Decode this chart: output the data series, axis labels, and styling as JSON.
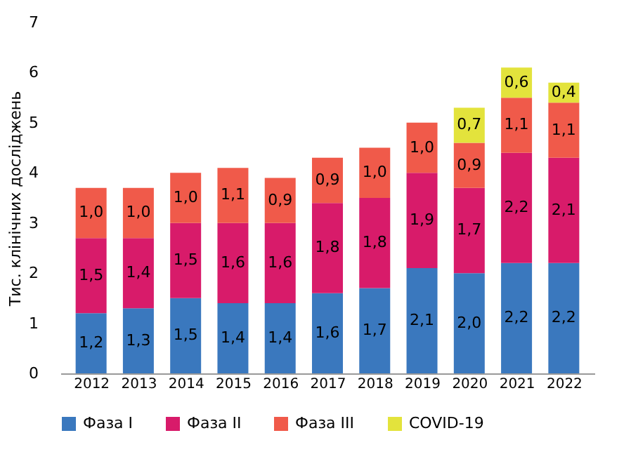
{
  "chart_data": {
    "type": "bar",
    "stacked": true,
    "ylabel": "Тис. клінічних досліджень",
    "categories": [
      "2012",
      "2013",
      "2014",
      "2015",
      "2016",
      "2017",
      "2018",
      "2019",
      "2020",
      "2021",
      "2022"
    ],
    "series": [
      {
        "name": "Фаза I",
        "color": "#3a78be",
        "values": [
          1.2,
          1.3,
          1.5,
          1.4,
          1.4,
          1.6,
          1.7,
          2.1,
          2.0,
          2.2,
          2.2
        ],
        "value_labels": [
          "1,2",
          "1,3",
          "1,5",
          "1,4",
          "1,4",
          "1,6",
          "1,7",
          "2,1",
          "2,0",
          "2,2",
          "2,2"
        ]
      },
      {
        "name": "Фаза II",
        "color": "#d81b6a",
        "values": [
          1.5,
          1.4,
          1.5,
          1.6,
          1.6,
          1.8,
          1.8,
          1.9,
          1.7,
          2.2,
          2.1
        ],
        "value_labels": [
          "1,5",
          "1,4",
          "1,5",
          "1,6",
          "1,6",
          "1,8",
          "1,8",
          "1,9",
          "1,7",
          "2,2",
          "2,1"
        ]
      },
      {
        "name": "Фаза III",
        "color": "#f05a4a",
        "values": [
          1.0,
          1.0,
          1.0,
          1.1,
          0.9,
          0.9,
          1.0,
          1.0,
          0.9,
          1.1,
          1.1
        ],
        "value_labels": [
          "1,0",
          "1,0",
          "1,0",
          "1,1",
          "0,9",
          "0,9",
          "1,0",
          "1,0",
          "0,9",
          "1,1",
          "1,1"
        ]
      },
      {
        "name": "COVID-19",
        "color": "#e3e33c",
        "values": [
          null,
          null,
          null,
          null,
          null,
          null,
          null,
          null,
          0.7,
          0.6,
          0.4
        ],
        "value_labels": [
          null,
          null,
          null,
          null,
          null,
          null,
          null,
          null,
          "0,7",
          "0,6",
          "0,4"
        ]
      }
    ],
    "ylim": [
      0,
      7
    ],
    "yticks": [
      0,
      1,
      2,
      3,
      4,
      5,
      6,
      7
    ],
    "grid": false,
    "legend": "bottom"
  }
}
